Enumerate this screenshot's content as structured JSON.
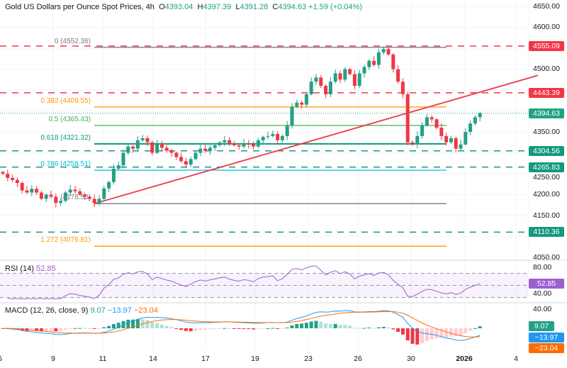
{
  "header": {
    "title": "Gold US Dollars per Ounce Spot Prices, 4h",
    "o_label": "O",
    "o": "4393.04",
    "h_label": "H",
    "h": "4397.39",
    "l_label": "L",
    "l": "4391.28",
    "c_label": "C",
    "c": "4394.63",
    "change": "+1.59 (+0.04%)"
  },
  "colors": {
    "up": "#22a186",
    "down": "#f23645",
    "rsi": "#9c5fd0",
    "macd": "#2196f3",
    "signal": "#ff6d00",
    "resistance": "#f23645",
    "support": "#159980"
  },
  "chart_data": {
    "type": "candlestick",
    "title": "Gold US Dollars per Ounce Spot Prices, 4h",
    "ylim": [
      4050,
      4650
    ],
    "y_ticks": [
      "4650.00",
      "4600.00",
      "4500.00",
      "4350.00",
      "4250.00",
      "4200.00",
      "4150.00",
      "4050.00"
    ],
    "x_ticks": [
      "5",
      "9",
      "11",
      "14",
      "17",
      "19",
      "23",
      "26",
      "30",
      "2026",
      "4"
    ],
    "closes": [
      4250,
      4240,
      4235,
      4228,
      4210,
      4205,
      4214,
      4205,
      4190,
      4200,
      4195,
      4180,
      4185,
      4205,
      4212,
      4208,
      4200,
      4195,
      4190,
      4180,
      4190,
      4215,
      4230,
      4262,
      4270,
      4300,
      4315,
      4310,
      4330,
      4335,
      4325,
      4300,
      4320,
      4312,
      4305,
      4300,
      4290,
      4280,
      4272,
      4285,
      4300,
      4310,
      4305,
      4312,
      4318,
      4325,
      4330,
      4322,
      4318,
      4315,
      4322,
      4320,
      4315,
      4330,
      4338,
      4340,
      4345,
      4330,
      4340,
      4365,
      4410,
      4420,
      4415,
      4440,
      4470,
      4480,
      4460,
      4440,
      4470,
      4490,
      4475,
      4500,
      4488,
      4460,
      4490,
      4505,
      4520,
      4510,
      4540,
      4548,
      4535,
      4500,
      4470,
      4440,
      4325,
      4320,
      4340,
      4365,
      4385,
      4380,
      4360,
      4340,
      4325,
      4335,
      4310,
      4320,
      4350,
      4370,
      4385,
      4394.63
    ],
    "horizontal_levels": [
      {
        "value": 4555.09,
        "label": "4555.09",
        "type": "resistance"
      },
      {
        "value": 4443.39,
        "label": "4443.39",
        "type": "resistance"
      },
      {
        "value": 4304.56,
        "label": "4304.56",
        "type": "support"
      },
      {
        "value": 4265.83,
        "label": "4265.83",
        "type": "support"
      },
      {
        "value": 4110.36,
        "label": "4110.36",
        "type": "support"
      }
    ],
    "last_price": {
      "value": 4394.63,
      "label": "4394.63"
    },
    "fibonacci": [
      {
        "value": 4552.36,
        "label": "0 (4552.36)",
        "color": "#787b86"
      },
      {
        "value": 4409.55,
        "label": "0.382 (4409.55)",
        "color": "#ff9800"
      },
      {
        "value": 4365.43,
        "label": "0.5 (4365.43)",
        "color": "#4caf50"
      },
      {
        "value": 4321.32,
        "label": "0.618 (4321.32)",
        "color": "#089981"
      },
      {
        "value": 4258.51,
        "label": "0.786 (4258.51)",
        "color": "#00bcd4"
      },
      {
        "value": 4178.5,
        "label": "(4178.50)",
        "color": "#787b86"
      },
      {
        "value": 4076.81,
        "label": "1.272 (4076.81)",
        "color": "#ff9800"
      }
    ],
    "trendline": {
      "from_index": 19,
      "from_value": 4178.5,
      "to_index": 111,
      "to_value": 4485
    },
    "rsi": {
      "label": "RSI (14)",
      "value": "52.85",
      "ticks": [
        "80.00",
        "40.00"
      ],
      "bands": [
        70,
        50,
        30
      ]
    },
    "macd": {
      "label": "MACD (12, 26, close, 9)",
      "hist": "9.07",
      "macd": "−13.97",
      "signal": "−23.04",
      "tick": "40.00"
    }
  }
}
